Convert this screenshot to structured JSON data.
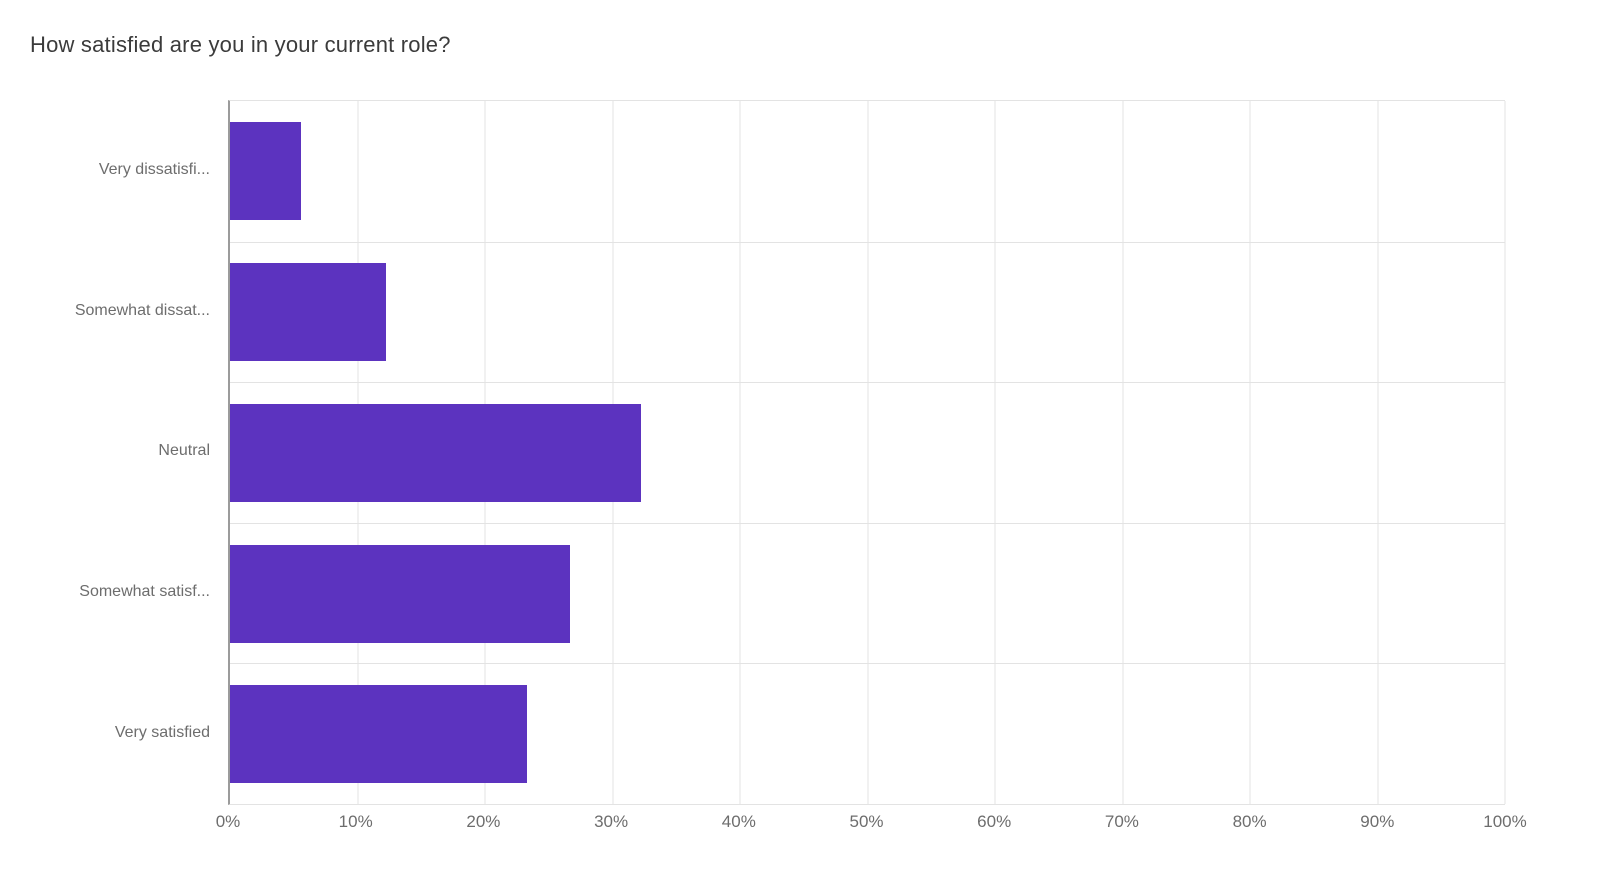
{
  "chart_data": {
    "type": "bar",
    "orientation": "horizontal",
    "title": "How satisfied are you in your current role?",
    "categories": [
      "Very dissatisfied",
      "Somewhat dissatisfied",
      "Neutral",
      "Somewhat satisfied",
      "Very satisfied"
    ],
    "category_labels_display": [
      "Very dissatisfi...",
      "Somewhat dissat...",
      "Neutral",
      "Somewhat satisf...",
      "Very satisfied"
    ],
    "values": [
      5.6,
      12.2,
      32.2,
      26.7,
      23.3
    ],
    "unit": "%",
    "xlabel": "",
    "ylabel": "",
    "xlim": [
      0,
      100
    ],
    "x_ticks": [
      "0%",
      "10%",
      "20%",
      "30%",
      "40%",
      "50%",
      "60%",
      "70%",
      "80%",
      "90%",
      "100%"
    ],
    "grid": "on",
    "legend": "none",
    "bar_color": "#5C33BF",
    "grid_color": "#e3e3e3",
    "axis_color": "#9b9b9b",
    "label_color": "#6d6d6d",
    "title_color": "#3b3b3b"
  }
}
